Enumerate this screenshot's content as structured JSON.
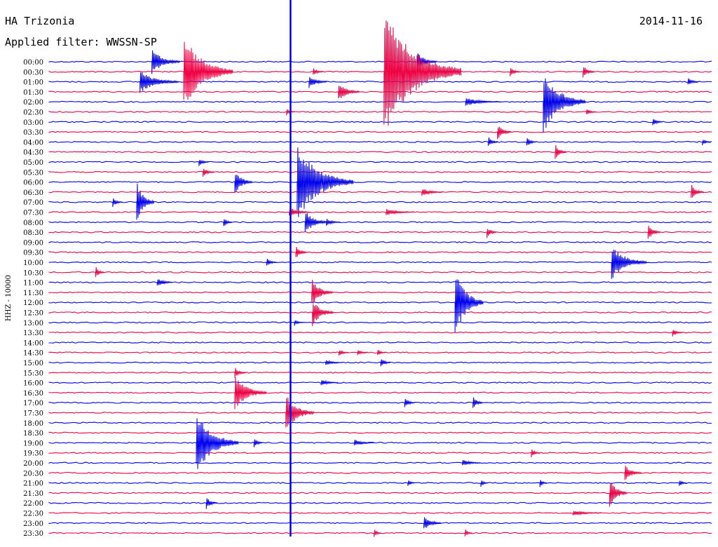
{
  "header": {
    "station": "HA Trizonia",
    "date": "2014-11-16",
    "filter": "Applied filter: WWSSN-SP"
  },
  "chart_data": {
    "type": "line",
    "title": "HA Trizonia",
    "ylabel": "HHZ - 10000",
    "row_labels": [
      "00:00",
      "00:30",
      "01:00",
      "01:30",
      "02:00",
      "02:30",
      "03:00",
      "03:30",
      "04:00",
      "04:30",
      "05:00",
      "05:30",
      "06:00",
      "06:30",
      "07:00",
      "07:30",
      "08:00",
      "08:30",
      "09:00",
      "09:30",
      "10:00",
      "10:30",
      "11:00",
      "11:30",
      "12:00",
      "12:30",
      "13:00",
      "13:30",
      "14:00",
      "14:30",
      "15:00",
      "15:30",
      "16:00",
      "16:30",
      "17:00",
      "17:30",
      "18:00",
      "18:30",
      "19:00",
      "19:30",
      "20:00",
      "20:30",
      "21:00",
      "21:30",
      "22:00",
      "22:30",
      "23:00",
      "23:30"
    ],
    "colors": {
      "even_rows": "#0000ee",
      "odd_rows": "#ee0044"
    },
    "timing_mark": {
      "x_fraction": 0.364
    },
    "events": [
      {
        "row": 0,
        "x": 0.155,
        "amp": 18,
        "len": 40
      },
      {
        "row": 0,
        "x": 0.555,
        "amp": 14,
        "len": 28
      },
      {
        "row": 1,
        "x": 0.203,
        "amp": 55,
        "len": 70
      },
      {
        "row": 1,
        "x": 0.505,
        "amp": 90,
        "len": 110
      },
      {
        "row": 1,
        "x": 0.398,
        "amp": 6,
        "len": 14
      },
      {
        "row": 1,
        "x": 0.695,
        "amp": 7,
        "len": 14
      },
      {
        "row": 1,
        "x": 0.805,
        "amp": 10,
        "len": 16
      },
      {
        "row": 2,
        "x": 0.137,
        "amp": 16,
        "len": 55
      },
      {
        "row": 2,
        "x": 0.392,
        "amp": 10,
        "len": 25
      },
      {
        "row": 2,
        "x": 0.963,
        "amp": 6,
        "len": 16
      },
      {
        "row": 3,
        "x": 0.436,
        "amp": 14,
        "len": 30
      },
      {
        "row": 4,
        "x": 0.628,
        "amp": 6,
        "len": 50
      },
      {
        "row": 4,
        "x": 0.745,
        "amp": 45,
        "len": 60
      },
      {
        "row": 5,
        "x": 0.358,
        "amp": 5,
        "len": 12
      },
      {
        "row": 5,
        "x": 0.81,
        "amp": 5,
        "len": 14
      },
      {
        "row": 6,
        "x": 0.91,
        "amp": 7,
        "len": 14
      },
      {
        "row": 7,
        "x": 0.676,
        "amp": 12,
        "len": 20
      },
      {
        "row": 8,
        "x": 0.662,
        "amp": 8,
        "len": 14
      },
      {
        "row": 8,
        "x": 0.72,
        "amp": 8,
        "len": 14
      },
      {
        "row": 8,
        "x": 0.985,
        "amp": 5,
        "len": 12
      },
      {
        "row": 9,
        "x": 0.763,
        "amp": 12,
        "len": 16
      },
      {
        "row": 10,
        "x": 0.226,
        "amp": 6,
        "len": 14
      },
      {
        "row": 11,
        "x": 0.232,
        "amp": 8,
        "len": 16
      },
      {
        "row": 12,
        "x": 0.28,
        "amp": 18,
        "len": 25
      },
      {
        "row": 12,
        "x": 0.374,
        "amp": 55,
        "len": 80
      },
      {
        "row": 13,
        "x": 0.562,
        "amp": 6,
        "len": 30
      },
      {
        "row": 13,
        "x": 0.968,
        "amp": 12,
        "len": 18
      },
      {
        "row": 14,
        "x": 0.132,
        "amp": 30,
        "len": 25
      },
      {
        "row": 14,
        "x": 0.096,
        "amp": 7,
        "len": 14
      },
      {
        "row": 15,
        "x": 0.362,
        "amp": 8,
        "len": 30
      },
      {
        "row": 15,
        "x": 0.508,
        "amp": 5,
        "len": 40
      },
      {
        "row": 16,
        "x": 0.263,
        "amp": 8,
        "len": 12
      },
      {
        "row": 16,
        "x": 0.386,
        "amp": 18,
        "len": 30
      },
      {
        "row": 16,
        "x": 0.418,
        "amp": 6,
        "len": 20
      },
      {
        "row": 17,
        "x": 0.66,
        "amp": 9,
        "len": 14
      },
      {
        "row": 17,
        "x": 0.903,
        "amp": 12,
        "len": 18
      },
      {
        "row": 19,
        "x": 0.372,
        "amp": 10,
        "len": 16
      },
      {
        "row": 20,
        "x": 0.328,
        "amp": 7,
        "len": 14
      },
      {
        "row": 20,
        "x": 0.848,
        "amp": 25,
        "len": 50
      },
      {
        "row": 21,
        "x": 0.07,
        "amp": 10,
        "len": 12
      },
      {
        "row": 22,
        "x": 0.163,
        "amp": 7,
        "len": 22
      },
      {
        "row": 23,
        "x": 0.396,
        "amp": 20,
        "len": 30
      },
      {
        "row": 24,
        "x": 0.612,
        "amp": 50,
        "len": 40
      },
      {
        "row": 25,
        "x": 0.397,
        "amp": 20,
        "len": 30
      },
      {
        "row": 26,
        "x": 0.37,
        "amp": 5,
        "len": 12
      },
      {
        "row": 27,
        "x": 0.94,
        "amp": 7,
        "len": 14
      },
      {
        "row": 29,
        "x": 0.437,
        "amp": 5,
        "len": 14
      },
      {
        "row": 29,
        "x": 0.465,
        "amp": 5,
        "len": 14
      },
      {
        "row": 29,
        "x": 0.495,
        "amp": 5,
        "len": 12
      },
      {
        "row": 30,
        "x": 0.5,
        "amp": 8,
        "len": 14
      },
      {
        "row": 30,
        "x": 0.417,
        "amp": 4,
        "len": 24
      },
      {
        "row": 31,
        "x": 0.28,
        "amp": 8,
        "len": 16
      },
      {
        "row": 32,
        "x": 0.41,
        "amp": 5,
        "len": 24
      },
      {
        "row": 33,
        "x": 0.28,
        "amp": 25,
        "len": 45
      },
      {
        "row": 34,
        "x": 0.536,
        "amp": 9,
        "len": 14
      },
      {
        "row": 34,
        "x": 0.639,
        "amp": 10,
        "len": 14
      },
      {
        "row": 35,
        "x": 0.357,
        "amp": 28,
        "len": 40
      },
      {
        "row": 38,
        "x": 0.222,
        "amp": 45,
        "len": 60
      },
      {
        "row": 38,
        "x": 0.309,
        "amp": 8,
        "len": 12
      },
      {
        "row": 38,
        "x": 0.46,
        "amp": 5,
        "len": 28
      },
      {
        "row": 39,
        "x": 0.727,
        "amp": 7,
        "len": 12
      },
      {
        "row": 40,
        "x": 0.623,
        "amp": 5,
        "len": 26
      },
      {
        "row": 41,
        "x": 0.868,
        "amp": 12,
        "len": 24
      },
      {
        "row": 42,
        "x": 0.541,
        "amp": 5,
        "len": 10
      },
      {
        "row": 42,
        "x": 0.651,
        "amp": 6,
        "len": 10
      },
      {
        "row": 42,
        "x": 0.74,
        "amp": 6,
        "len": 10
      },
      {
        "row": 42,
        "x": 0.95,
        "amp": 6,
        "len": 10
      },
      {
        "row": 43,
        "x": 0.845,
        "amp": 22,
        "len": 25
      },
      {
        "row": 44,
        "x": 0.237,
        "amp": 9,
        "len": 16
      },
      {
        "row": 45,
        "x": 0.79,
        "amp": 4,
        "len": 40
      },
      {
        "row": 46,
        "x": 0.565,
        "amp": 12,
        "len": 24
      },
      {
        "row": 47,
        "x": 0.49,
        "amp": 7,
        "len": 10
      },
      {
        "row": 47,
        "x": 0.627,
        "amp": 7,
        "len": 10
      }
    ]
  }
}
